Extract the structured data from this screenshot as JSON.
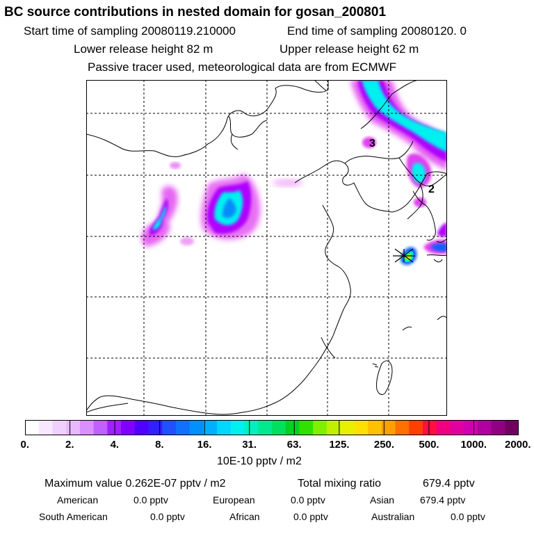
{
  "header": {
    "title": "BC  source contributions in nested domain for gosan_200801",
    "start_label": "Start time of sampling 20080119.210000",
    "end_label": "End time of sampling 20080120.     0",
    "lower_label": "Lower release height   82 m",
    "upper_label": "Upper release height   62 m",
    "tracer_note": "Passive tracer used, meteorological data are from ECMWF"
  },
  "map": {
    "labels": [
      "3",
      "2"
    ],
    "colors": {
      "magenta": "#e040f0",
      "violet": "#b000ff",
      "cyan": "#00f0f0",
      "blue": "#1060ff"
    }
  },
  "colorbar": {
    "colors": [
      "#ffffff",
      "#f8e8ff",
      "#f0d0ff",
      "#e8b8ff",
      "#d890ff",
      "#c060ff",
      "#a020ff",
      "#8000ff",
      "#5000ff",
      "#3020ff",
      "#2050ff",
      "#1070ff",
      "#0090ff",
      "#00b0ff",
      "#00d8ff",
      "#00f0f0",
      "#00f0c0",
      "#00e890",
      "#00e060",
      "#00d020",
      "#30e000",
      "#80f000",
      "#c0f000",
      "#e8f000",
      "#ffe000",
      "#ffc000",
      "#ffa000",
      "#ff7000",
      "#ff4000",
      "#ff1040",
      "#f00080",
      "#e000a0",
      "#d000b0",
      "#b000a0",
      "#900080",
      "#700060"
    ],
    "ticks": [
      "0.",
      "2.",
      "4.",
      "8.",
      "16.",
      "31.",
      "63.",
      "125.",
      "250.",
      "500.",
      "1000.",
      "2000."
    ],
    "unit": "10E-10 pptv / m2"
  },
  "summary": {
    "max_label": "Maximum value  0.262E-07 pptv / m2",
    "total_label": "Total mixing ratio",
    "total_value": "679.4 pptv",
    "regions_row1": [
      {
        "name": "American",
        "value": "0.0 pptv"
      },
      {
        "name": "European",
        "value": "0.0 pptv"
      },
      {
        "name": "Asian",
        "value": "679.4 pptv"
      }
    ],
    "regions_row2": [
      {
        "name": "South American",
        "value": "0.0 pptv"
      },
      {
        "name": "African",
        "value": "0.0 pptv"
      },
      {
        "name": "Australian",
        "value": "0.0 pptv"
      }
    ]
  }
}
